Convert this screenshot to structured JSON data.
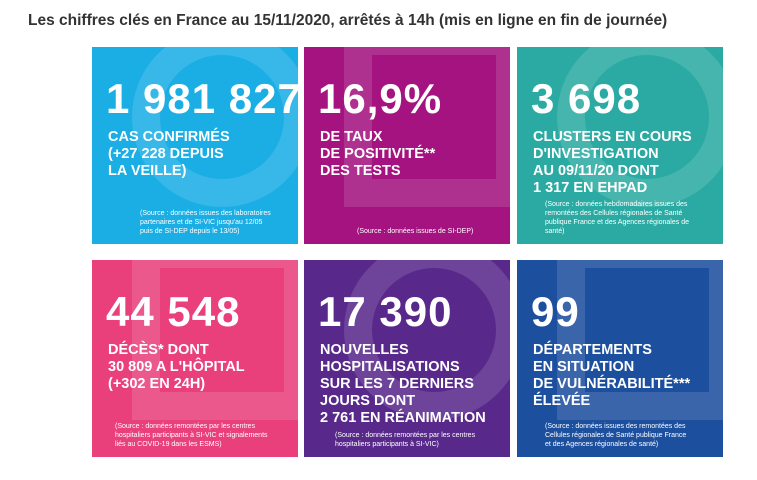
{
  "header": {
    "title": "Les chiffres clés en France au 15/11/2020, arrêtés à 14h (mis en ligne en fin de journée)"
  },
  "tiles": [
    {
      "number": "1 981 827",
      "lines": [
        "CAS CONFIRMÉS",
        "(+27 228 DEPUIS",
        "LA VEILLE)"
      ],
      "source": [
        "(Source : données issues des laboratoires",
        "partenaires et de SI-VIC jusqu'au 12/05",
        "puis de SI-DEP depuis le 13/05)"
      ]
    },
    {
      "number": "16,9%",
      "lines": [
        "DE TAUX",
        "DE POSITIVITÉ**",
        "DES TESTS"
      ],
      "source": [
        "(Source : données issues de SI-DEP)"
      ]
    },
    {
      "number": "3 698",
      "lines": [
        "CLUSTERS EN COURS",
        "D'INVESTIGATION",
        "AU 09/11/20 DONT",
        "1 317 EN EHPAD"
      ],
      "source": [
        "(Source : données hebdomadaires issues des",
        "remontées des Cellules régionales de Santé",
        "publique France et des Agences régionales de",
        "santé)"
      ]
    },
    {
      "number": "44 548",
      "lines": [
        "DÉCÈS* DONT",
        "30 809 A L'HÔPITAL",
        "(+302 EN 24H)"
      ],
      "source": [
        "(Source : données remontées par les centres",
        "hospitaliers participants à SI-VIC et signalements",
        "liés au COVID-19 dans les ESMS)"
      ]
    },
    {
      "number": "17 390",
      "lines": [
        "NOUVELLES",
        "HOSPITALISATIONS",
        "SUR LES 7 DERNIERS",
        "JOURS DONT",
        "2 761 EN RÉANIMATION"
      ],
      "source": [
        "(Source : données remontées par les centres",
        "hospitaliers participants à SI-VIC)"
      ]
    },
    {
      "number": "99",
      "lines": [
        "DÉPARTEMENTS",
        "EN SITUATION",
        "DE VULNÉRABILITÉ***",
        "ÉLEVÉE"
      ],
      "source": [
        "(Source : données issues des remontées des",
        "Cellules régionales de Santé publique France",
        "et des Agences régionales de santé)"
      ]
    }
  ]
}
